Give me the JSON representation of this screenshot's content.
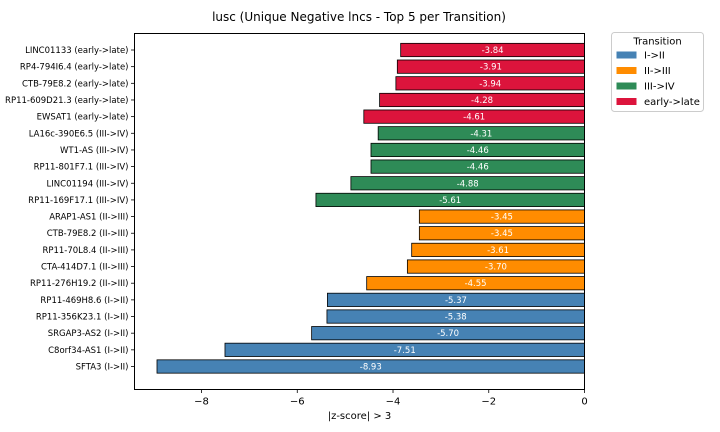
{
  "chart_data": {
    "type": "bar",
    "orientation": "horizontal",
    "title": "lusc (Unique Negative lncs - Top 5 per Transition)",
    "xlabel": "|z-score| > 3",
    "ylabel": "",
    "xlim": [
      -9.4,
      0
    ],
    "xticks": [
      -8,
      -6,
      -4,
      -2,
      0
    ],
    "xtick_labels": [
      "−8",
      "−6",
      "−4",
      "−2",
      "0"
    ],
    "grid": false,
    "legend": {
      "title": "Transition",
      "placement": "outside-top-right",
      "entries": [
        {
          "label": "I->II",
          "color": "#4682b4"
        },
        {
          "label": "II->III",
          "color": "#ff8c00"
        },
        {
          "label": "III->IV",
          "color": "#2e8b57"
        },
        {
          "label": "early->late",
          "color": "#dc143c"
        }
      ]
    },
    "bars": [
      {
        "category": "LINC01133 (early->late)",
        "value": -3.84,
        "value_label": "-3.84",
        "series": "early->late"
      },
      {
        "category": "RP4-794I6.4 (early->late)",
        "value": -3.91,
        "value_label": "-3.91",
        "series": "early->late"
      },
      {
        "category": "CTB-79E8.2 (early->late)",
        "value": -3.94,
        "value_label": "-3.94",
        "series": "early->late"
      },
      {
        "category": "RP11-609D21.3 (early->late)",
        "value": -4.28,
        "value_label": "-4.28",
        "series": "early->late"
      },
      {
        "category": "EWSAT1 (early->late)",
        "value": -4.61,
        "value_label": "-4.61",
        "series": "early->late"
      },
      {
        "category": "LA16c-390E6.5 (III->IV)",
        "value": -4.31,
        "value_label": "-4.31",
        "series": "III->IV"
      },
      {
        "category": "WT1-AS (III->IV)",
        "value": -4.46,
        "value_label": "-4.46",
        "series": "III->IV"
      },
      {
        "category": "RP11-801F7.1 (III->IV)",
        "value": -4.46,
        "value_label": "-4.46",
        "series": "III->IV"
      },
      {
        "category": "LINC01194 (III->IV)",
        "value": -4.88,
        "value_label": "-4.88",
        "series": "III->IV"
      },
      {
        "category": "RP11-169F17.1 (III->IV)",
        "value": -5.61,
        "value_label": "-5.61",
        "series": "III->IV"
      },
      {
        "category": "ARAP1-AS1 (II->III)",
        "value": -3.45,
        "value_label": "-3.45",
        "series": "II->III"
      },
      {
        "category": "CTB-79E8.2 (II->III)",
        "value": -3.45,
        "value_label": "-3.45",
        "series": "II->III"
      },
      {
        "category": "RP11-70L8.4 (II->III)",
        "value": -3.61,
        "value_label": "-3.61",
        "series": "II->III"
      },
      {
        "category": "CTA-414D7.1 (II->III)",
        "value": -3.7,
        "value_label": "-3.70",
        "series": "II->III"
      },
      {
        "category": "RP11-276H19.2 (II->III)",
        "value": -4.55,
        "value_label": "-4.55",
        "series": "II->III"
      },
      {
        "category": "RP11-469H8.6 (I->II)",
        "value": -5.37,
        "value_label": "-5.37",
        "series": "I->II"
      },
      {
        "category": "RP11-356K23.1 (I->II)",
        "value": -5.38,
        "value_label": "-5.38",
        "series": "I->II"
      },
      {
        "category": "SRGAP3-AS2 (I->II)",
        "value": -5.7,
        "value_label": "-5.70",
        "series": "I->II"
      },
      {
        "category": "C8orf34-AS1 (I->II)",
        "value": -7.51,
        "value_label": "-7.51",
        "series": "I->II"
      },
      {
        "category": "SFTA3 (I->II)",
        "value": -8.93,
        "value_label": "-8.93",
        "series": "I->II"
      }
    ]
  }
}
